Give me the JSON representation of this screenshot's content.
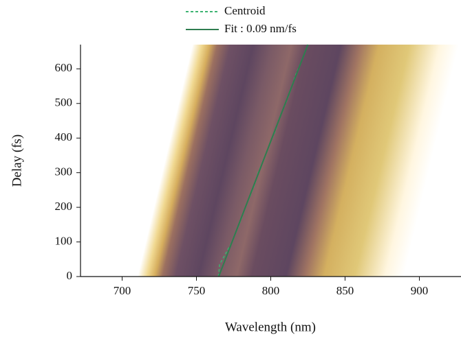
{
  "chart_data": {
    "type": "line",
    "xlabel": "Wavelength (nm)",
    "ylabel": "Delay (fs)",
    "xlim": [
      672,
      928
    ],
    "ylim": [
      0,
      670
    ],
    "xticks": [
      700,
      750,
      800,
      850,
      900
    ],
    "yticks": [
      0,
      100,
      200,
      300,
      400,
      500,
      600
    ],
    "series": [
      {
        "name": "Centroid",
        "color": "#3cb371",
        "dashed": true,
        "x": [
          764.8,
          765.6,
          774,
          780.5,
          783,
          786.8,
          789.5,
          791.5,
          795.5,
          799,
          803,
          806,
          810,
          813.5,
          816.5,
          820.5,
          824
        ],
        "values": [
          0,
          35,
          100,
          170,
          200,
          240,
          270,
          300,
          340,
          380,
          420,
          460,
          500,
          540,
          580,
          620,
          660
        ]
      },
      {
        "name": "Fit : 0.09 nm/fs",
        "color": "#2e7d4f",
        "dashed": false,
        "x": [
          765,
          825
        ],
        "values": [
          0,
          670
        ]
      }
    ]
  }
}
